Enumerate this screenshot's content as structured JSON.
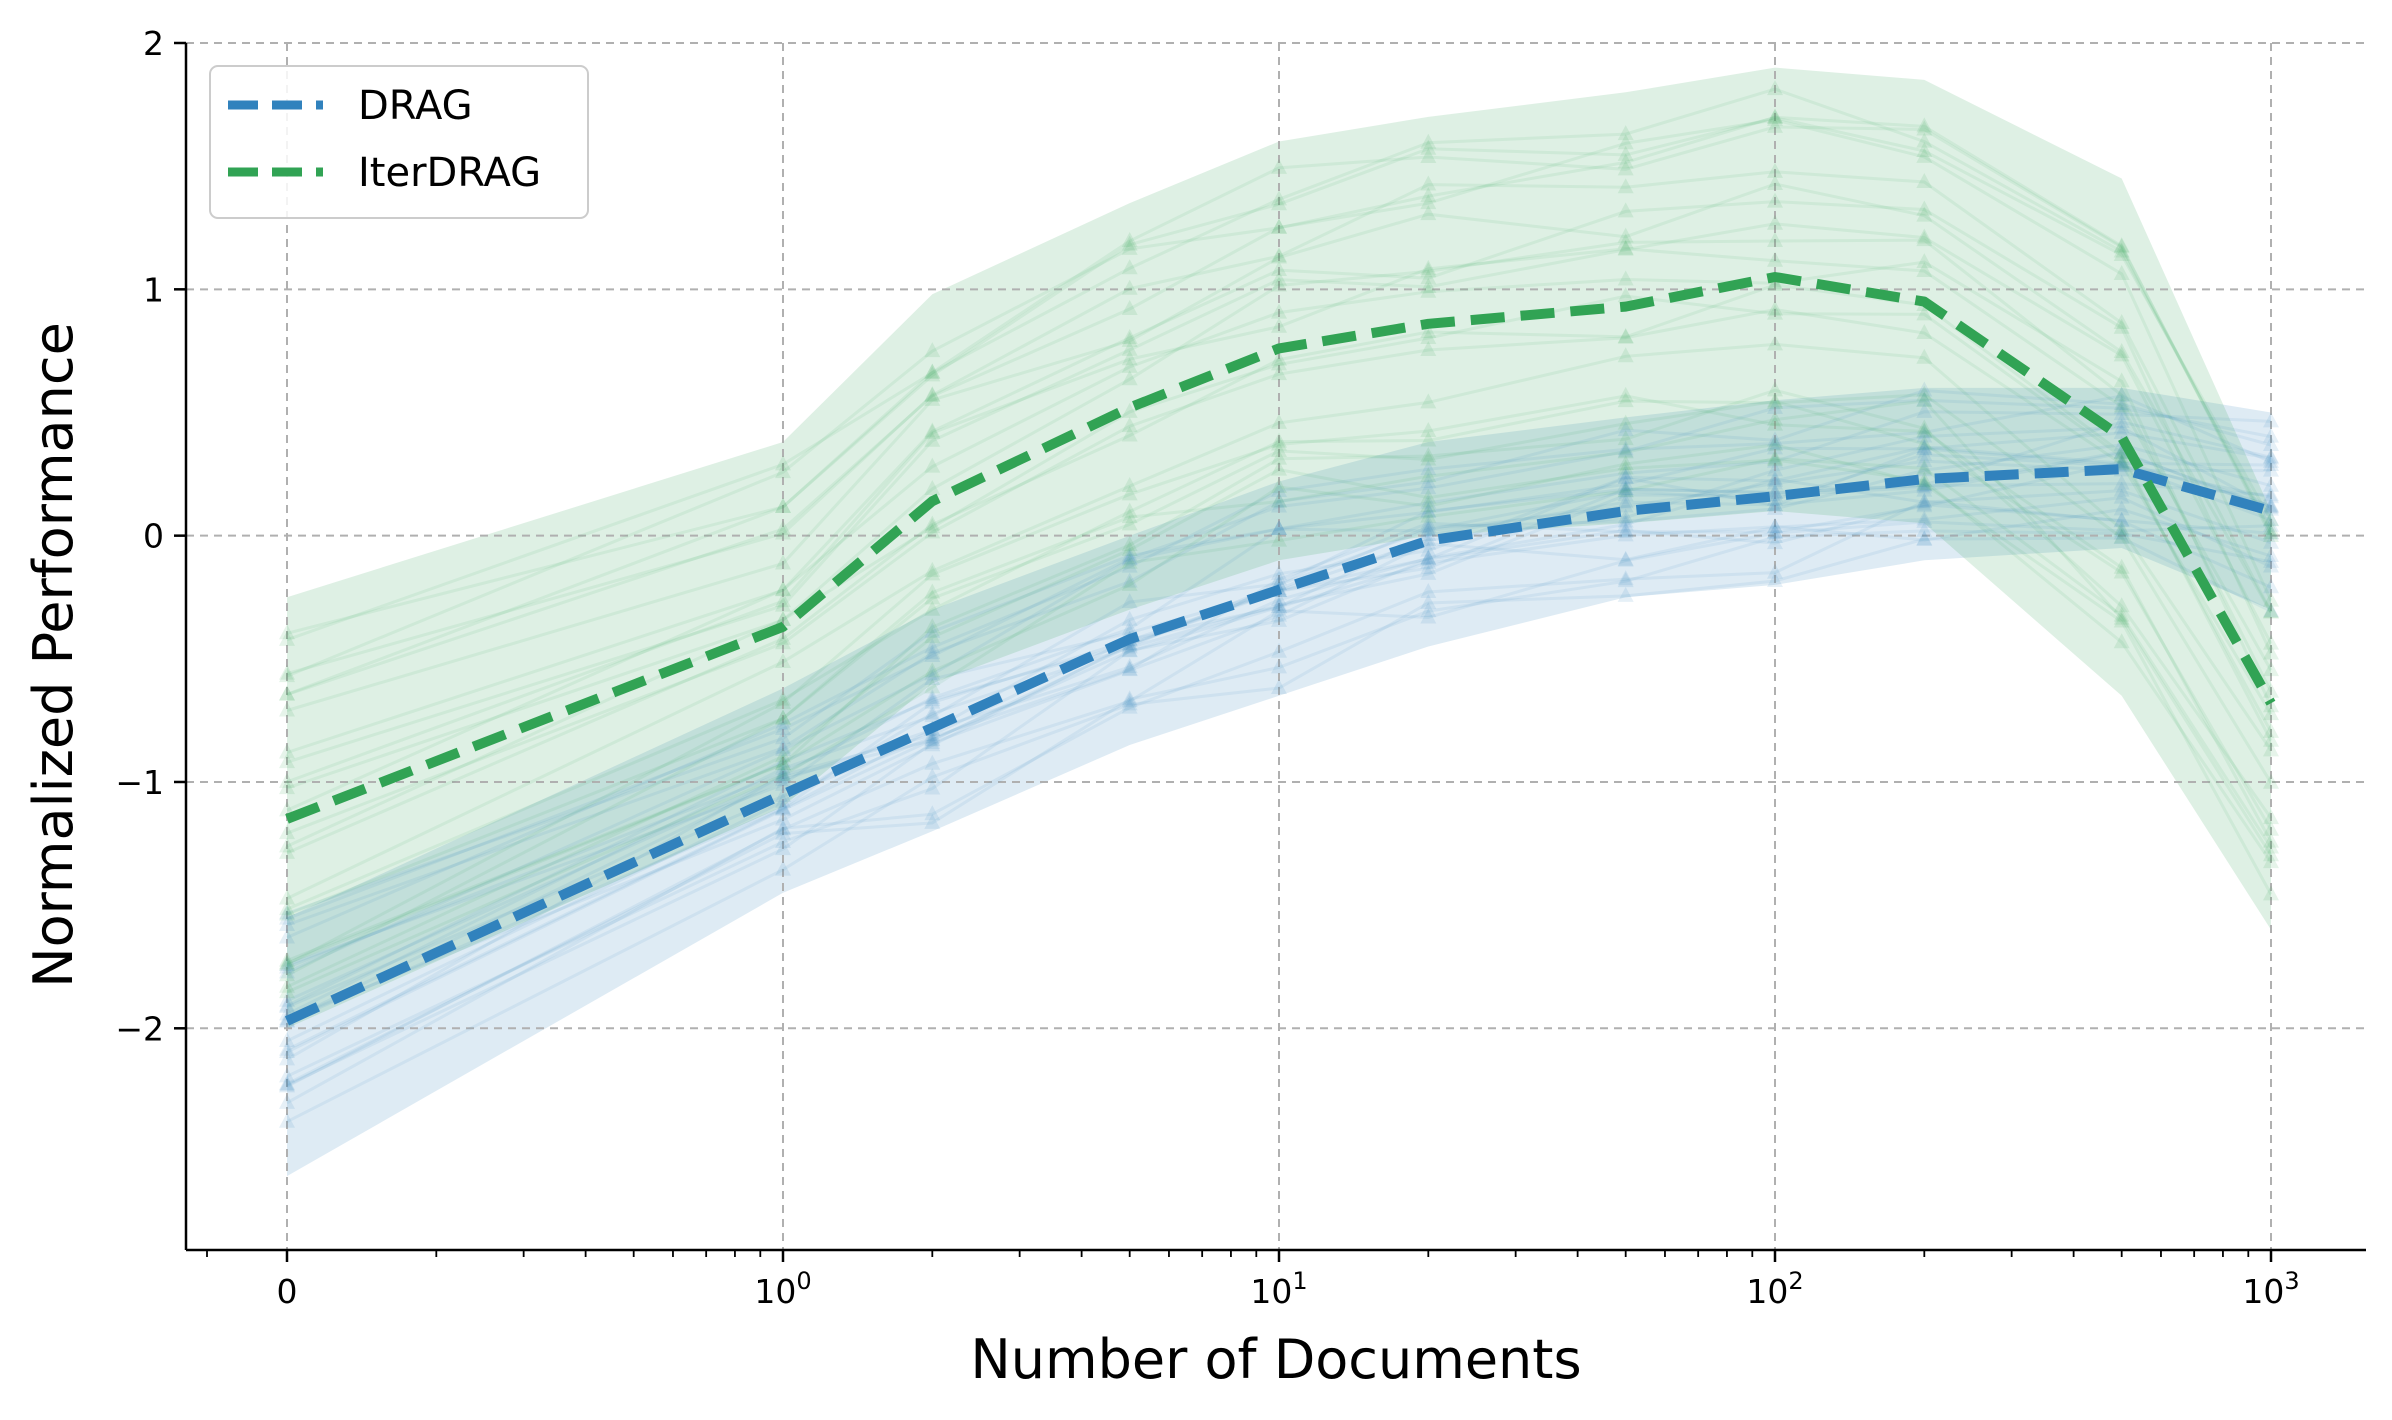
{
  "chart_data": {
    "type": "line",
    "xlabel": "Number of Documents",
    "ylabel": "Normalized Performance",
    "x_scale": "symlog",
    "xlim": [
      0,
      1000
    ],
    "ylim": [
      -2.9,
      2
    ],
    "x_ticks": [
      {
        "value": 0,
        "base": "0",
        "exp": ""
      },
      {
        "value": 1,
        "base": "10",
        "exp": "0"
      },
      {
        "value": 10,
        "base": "10",
        "exp": "1"
      },
      {
        "value": 100,
        "base": "10",
        "exp": "2"
      },
      {
        "value": 1000,
        "base": "10",
        "exp": "3"
      }
    ],
    "y_ticks": [
      {
        "value": 2,
        "label": "2"
      },
      {
        "value": 1,
        "label": "1"
      },
      {
        "value": 0,
        "label": "0"
      },
      {
        "value": -1,
        "label": "−1"
      },
      {
        "value": -2,
        "label": "−2"
      }
    ],
    "grid": true,
    "legend_position": "top-left",
    "x": [
      0,
      1,
      2,
      5,
      10,
      20,
      50,
      100,
      200,
      500,
      1000
    ],
    "series": [
      {
        "name": "DRAG",
        "color": "#3182bd",
        "values": [
          -1.97,
          -1.05,
          -0.78,
          -0.42,
          -0.22,
          -0.02,
          0.1,
          0.16,
          0.23,
          0.27,
          0.1
        ],
        "band_low": [
          -2.6,
          -1.45,
          -1.2,
          -0.85,
          -0.65,
          -0.45,
          -0.25,
          -0.2,
          -0.1,
          -0.05,
          -0.3
        ],
        "band_high": [
          -1.55,
          -0.62,
          -0.3,
          0.0,
          0.22,
          0.38,
          0.48,
          0.55,
          0.6,
          0.6,
          0.5
        ]
      },
      {
        "name": "IterDRAG",
        "color": "#31a354",
        "values": [
          -1.15,
          -0.37,
          0.14,
          0.52,
          0.76,
          0.86,
          0.93,
          1.05,
          0.95,
          0.4,
          -0.68
        ],
        "band_low": [
          -2.0,
          -1.1,
          -0.6,
          -0.3,
          -0.1,
          0.0,
          0.05,
          0.1,
          0.05,
          -0.65,
          -1.6
        ],
        "band_high": [
          -0.25,
          0.38,
          0.98,
          1.35,
          1.6,
          1.7,
          1.8,
          1.9,
          1.85,
          1.45,
          0.1
        ]
      }
    ]
  }
}
